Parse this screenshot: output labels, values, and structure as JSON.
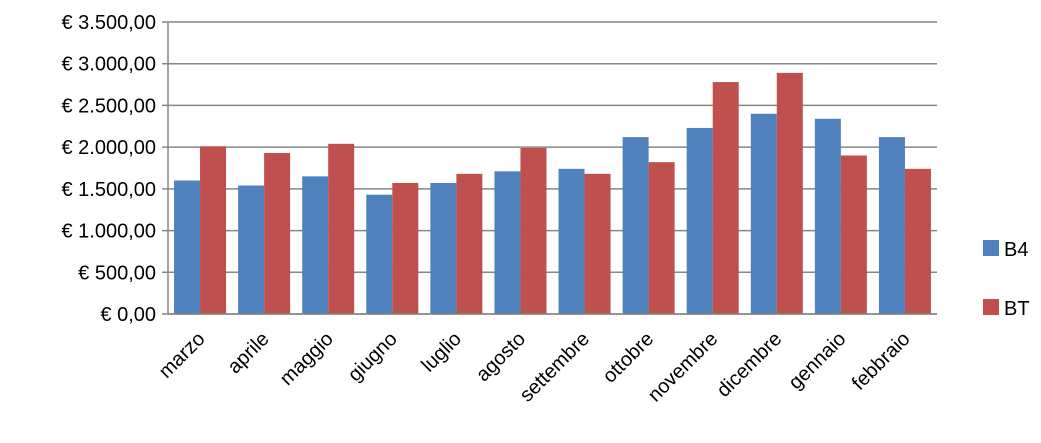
{
  "chart_data": {
    "type": "bar",
    "categories": [
      "marzo",
      "aprile",
      "maggio",
      "giugno",
      "luglio",
      "agosto",
      "settembre",
      "ottobre",
      "novembre",
      "dicembre",
      "gennaio",
      "febbraio"
    ],
    "series": [
      {
        "name": "B4",
        "color": "#4F81BD",
        "values": [
          1600,
          1540,
          1650,
          1430,
          1570,
          1710,
          1740,
          2120,
          2230,
          2400,
          2340,
          2120
        ]
      },
      {
        "name": "BT",
        "color": "#C0504D",
        "values": [
          2010,
          1930,
          2040,
          1570,
          1680,
          1990,
          1680,
          1820,
          2780,
          2890,
          1900,
          1740
        ]
      }
    ],
    "ylim": [
      0,
      3500
    ],
    "yticks": [
      0,
      500,
      1000,
      1500,
      2000,
      2500,
      3000,
      3500
    ],
    "ytick_labels": [
      "€ 0,00",
      "€ 500,00",
      "€ 1.000,00",
      "€ 1.500,00",
      "€ 2.000,00",
      "€ 2.500,00",
      "€ 3.000,00",
      "€ 3.500,00"
    ],
    "grid": true,
    "legend_position": "right",
    "gridline_color": "#868686"
  }
}
